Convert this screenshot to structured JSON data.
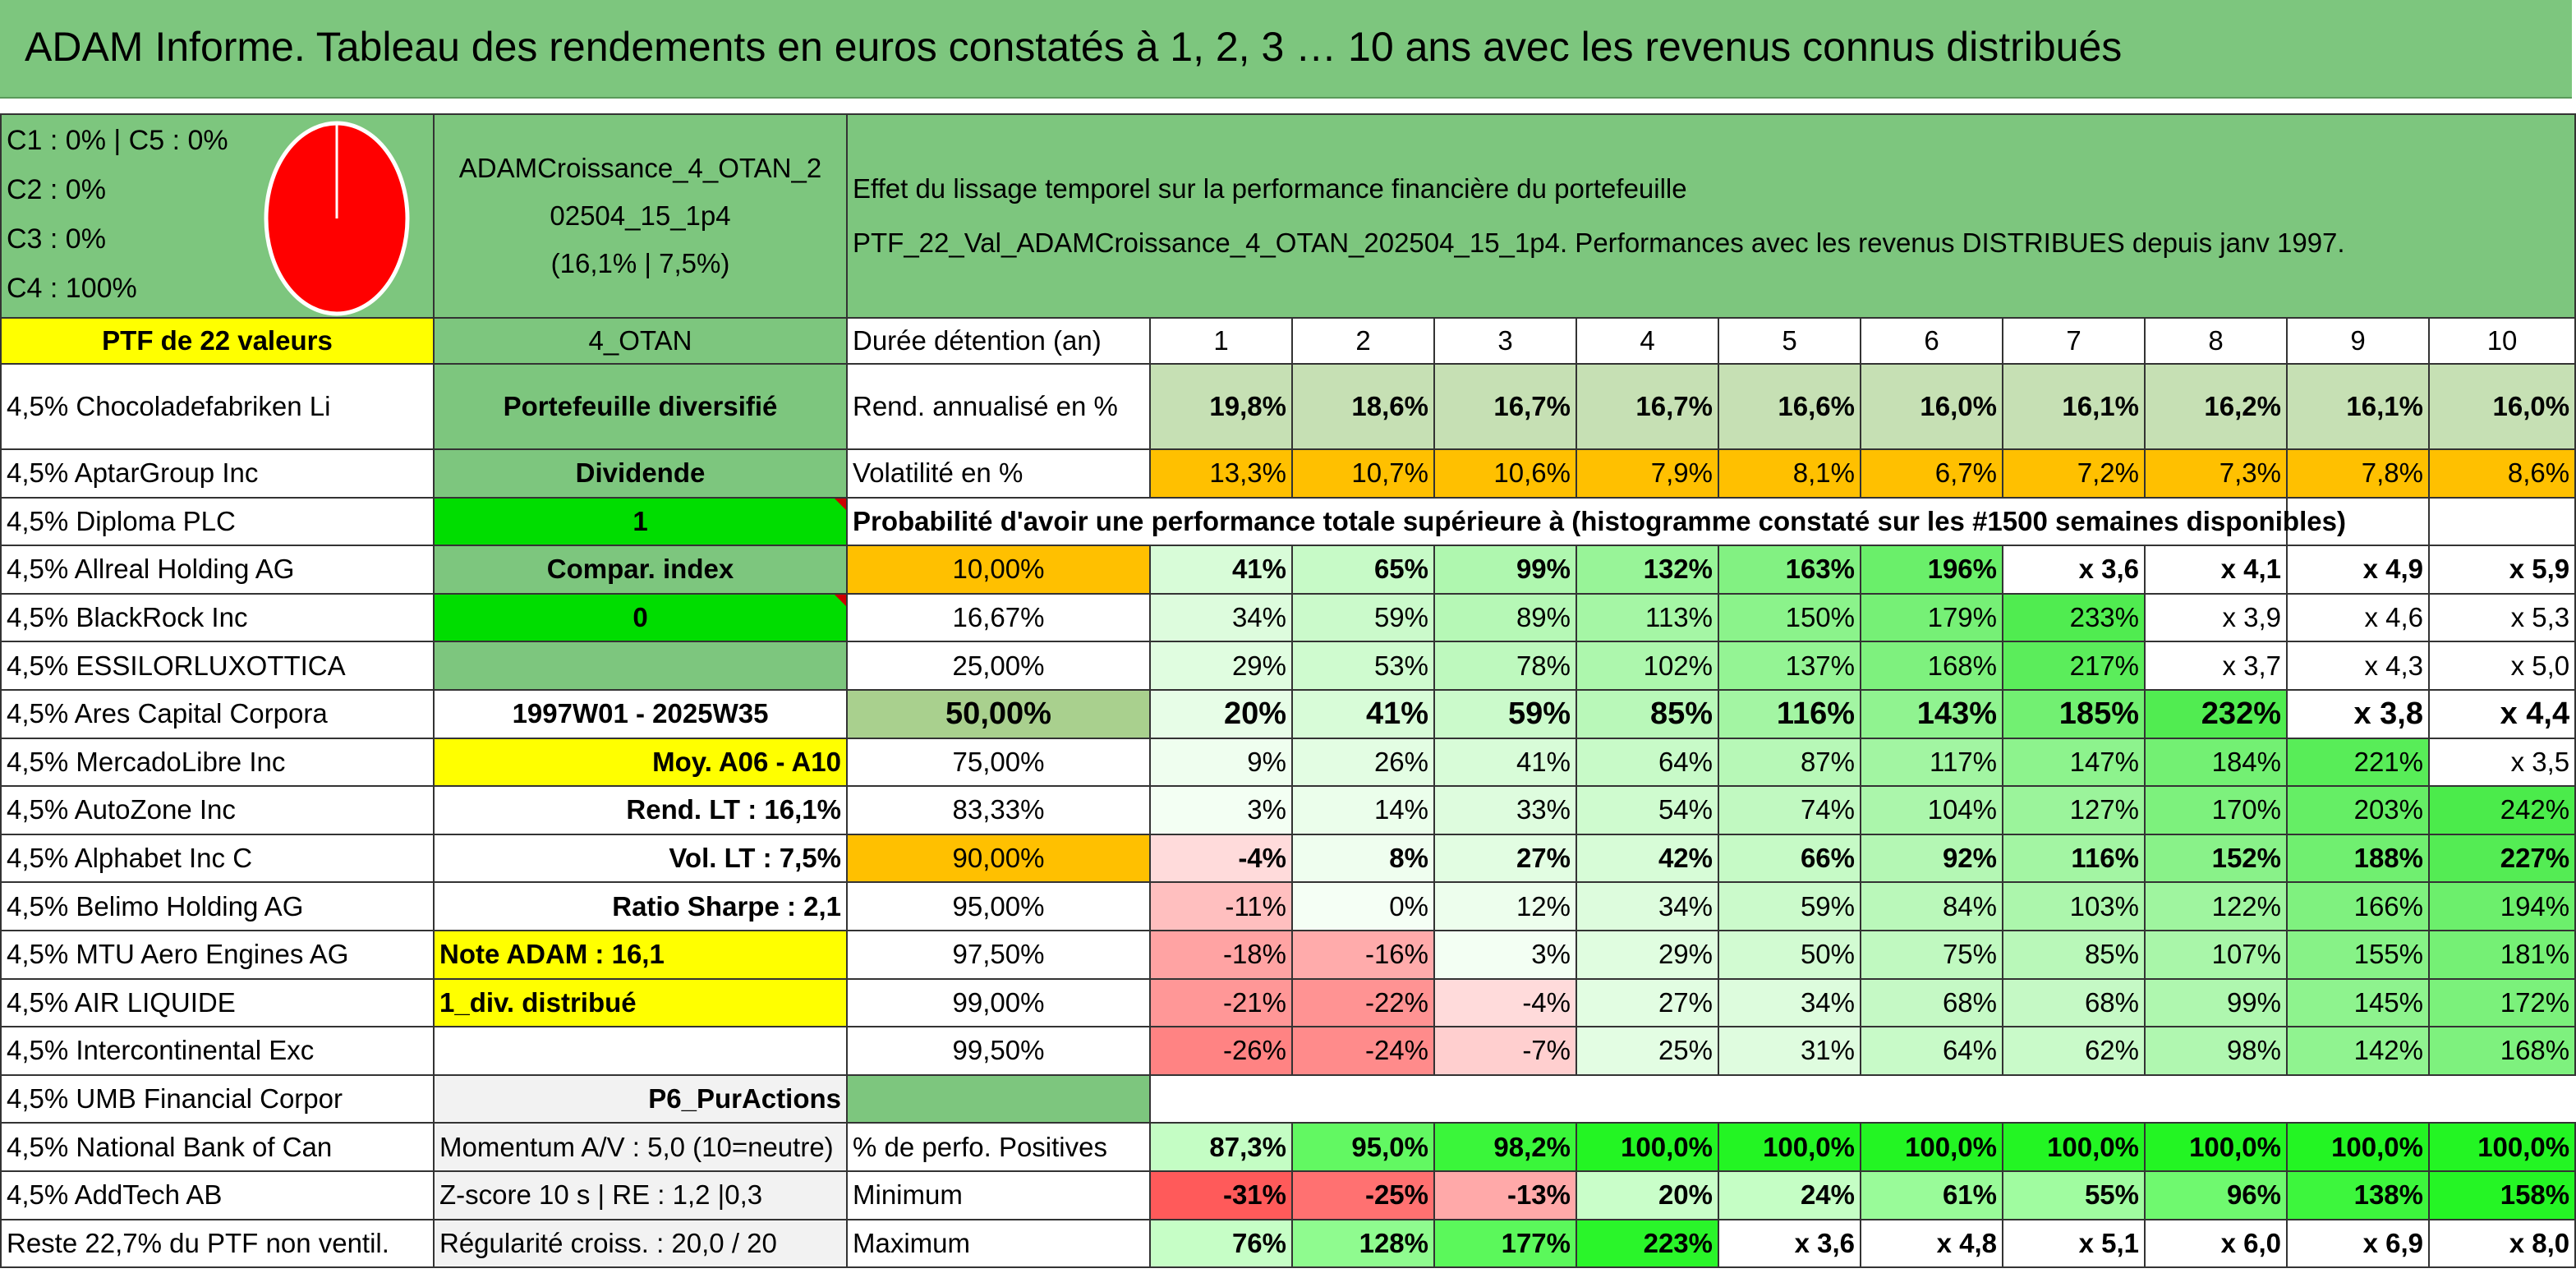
{
  "title": "ADAM Informe. Tableau des rendements en euros constatés à 1, 2, 3 … 10 ans avec les revenus connus distribués",
  "legend": {
    "lines": [
      "C1 : 0% | C5 : 0%",
      "C2 : 0%",
      "C3 : 0%",
      "C4 : 100%"
    ],
    "pie_color": "#ff0000",
    "pie_fraction_c4": 1.0
  },
  "portfolio_name": "ADAMCroissance_4_OTAN_202504_15_1p4",
  "portfolio_name_line1": "ADAMCroissance_4_OTAN_2",
  "portfolio_name_line2": "02504_15_1p4",
  "portfolio_stats": "(16,1% | 7,5%)",
  "description_line1": "Effet du lissage temporel sur la performance financière du portefeuille",
  "description_line2": "PTF_22_Val_ADAMCroissance_4_OTAN_202504_15_1p4. Performances avec les revenus DISTRIBUES depuis janv 1997.",
  "ptf_label": "PTF de 22 valeurs",
  "otan_label": "4_OTAN",
  "duration_label": "Durée détention (an)",
  "years": [
    "1",
    "2",
    "3",
    "4",
    "5",
    "6",
    "7",
    "8",
    "9",
    "10"
  ],
  "holdings": [
    "4,5% Chocoladefabriken Li",
    "4,5% AptarGroup Inc",
    "4,5% Diploma PLC",
    "4,5% Allreal Holding AG",
    "4,5% BlackRock Inc",
    "4,5% ESSILORLUXOTTICA",
    "4,5% Ares Capital Corpora",
    "4,5% MercadoLibre Inc",
    "4,5% AutoZone Inc",
    "4,5% Alphabet Inc C",
    "4,5% Belimo Holding AG",
    "4,5% MTU Aero Engines AG",
    "4,5% AIR LIQUIDE",
    "4,5% Intercontinental Exc",
    "4,5% UMB Financial Corpor",
    "4,5% National Bank of Can",
    "4,5% AddTech AB",
    "Reste 22,7% du PTF non ventil."
  ],
  "info_column": [
    "Portefeuille diversifié",
    "Dividende",
    "1",
    "Compar. index",
    "0",
    "",
    "1997W01 - 2025W35",
    "Moy. A06 - A10",
    "Rend. LT : 16,1%",
    "Vol. LT : 7,5%",
    "Ratio Sharpe : 2,1",
    "Note ADAM : 16,1",
    "1_div. distribué",
    "",
    "P6_PurActions",
    "Momentum A/V : 5,0 (10=neutre)",
    "Z-score 10 s | RE : 1,2 |0,3",
    "Régularité croiss. : 20,0 / 20"
  ],
  "rend_label": "Rend. annualisé en %",
  "rend": [
    "19,8%",
    "18,6%",
    "16,7%",
    "16,7%",
    "16,6%",
    "16,0%",
    "16,1%",
    "16,2%",
    "16,1%",
    "16,0%"
  ],
  "vol_label": "Volatilité en %",
  "vol": [
    "13,3%",
    "10,7%",
    "10,6%",
    "7,9%",
    "8,1%",
    "6,7%",
    "7,2%",
    "7,3%",
    "7,8%",
    "8,6%"
  ],
  "prob_header": "Probabilité d'avoir une performance totale supérieure à (histogramme constaté sur les #1500 semaines disponibles)",
  "prob_rows": [
    {
      "label": "10,00%",
      "values": [
        "41%",
        "65%",
        "99%",
        "132%",
        "163%",
        "196%",
        "x 3,6",
        "x 4,1",
        "x 4,9",
        "x 5,9"
      ]
    },
    {
      "label": "16,67%",
      "values": [
        "34%",
        "59%",
        "89%",
        "113%",
        "150%",
        "179%",
        "233%",
        "x 3,9",
        "x 4,6",
        "x 5,3"
      ]
    },
    {
      "label": "25,00%",
      "values": [
        "29%",
        "53%",
        "78%",
        "102%",
        "137%",
        "168%",
        "217%",
        "x 3,7",
        "x 4,3",
        "x 5,0"
      ]
    },
    {
      "label": "50,00%",
      "values": [
        "20%",
        "41%",
        "59%",
        "85%",
        "116%",
        "143%",
        "185%",
        "232%",
        "x 3,8",
        "x 4,4"
      ]
    },
    {
      "label": "75,00%",
      "values": [
        "9%",
        "26%",
        "41%",
        "64%",
        "87%",
        "117%",
        "147%",
        "184%",
        "221%",
        "x 3,5"
      ]
    },
    {
      "label": "83,33%",
      "values": [
        "3%",
        "14%",
        "33%",
        "54%",
        "74%",
        "104%",
        "127%",
        "170%",
        "203%",
        "242%"
      ]
    },
    {
      "label": "90,00%",
      "values": [
        "-4%",
        "8%",
        "27%",
        "42%",
        "66%",
        "92%",
        "116%",
        "152%",
        "188%",
        "227%"
      ]
    },
    {
      "label": "95,00%",
      "values": [
        "-11%",
        "0%",
        "12%",
        "34%",
        "59%",
        "84%",
        "103%",
        "122%",
        "166%",
        "194%"
      ]
    },
    {
      "label": "97,50%",
      "values": [
        "-18%",
        "-16%",
        "3%",
        "29%",
        "50%",
        "75%",
        "85%",
        "107%",
        "155%",
        "181%"
      ]
    },
    {
      "label": "99,00%",
      "values": [
        "-21%",
        "-22%",
        "-4%",
        "27%",
        "34%",
        "68%",
        "68%",
        "99%",
        "145%",
        "172%"
      ]
    },
    {
      "label": "99,50%",
      "values": [
        "-26%",
        "-24%",
        "-7%",
        "25%",
        "31%",
        "64%",
        "62%",
        "98%",
        "142%",
        "168%"
      ]
    }
  ],
  "pos_label": "% de perfo. Positives",
  "pos": [
    "87,3%",
    "95,0%",
    "98,2%",
    "100,0%",
    "100,0%",
    "100,0%",
    "100,0%",
    "100,0%",
    "100,0%",
    "100,0%"
  ],
  "min_label": "Minimum",
  "min": [
    "-31%",
    "-25%",
    "-13%",
    "20%",
    "24%",
    "61%",
    "55%",
    "96%",
    "138%",
    "158%"
  ],
  "max_label": "Maximum",
  "max": [
    "76%",
    "128%",
    "177%",
    "223%",
    "x 3,6",
    "x 4,8",
    "x 5,1",
    "x 6,0",
    "x 6,9",
    "x 8,0"
  ],
  "colors": {
    "header_green": "#7dc67e",
    "yellow": "#ffff00",
    "orange": "#ffc000",
    "bright_green": "#00dd00",
    "rend_green": "#c6e0b4",
    "red_text": "#e00000"
  }
}
